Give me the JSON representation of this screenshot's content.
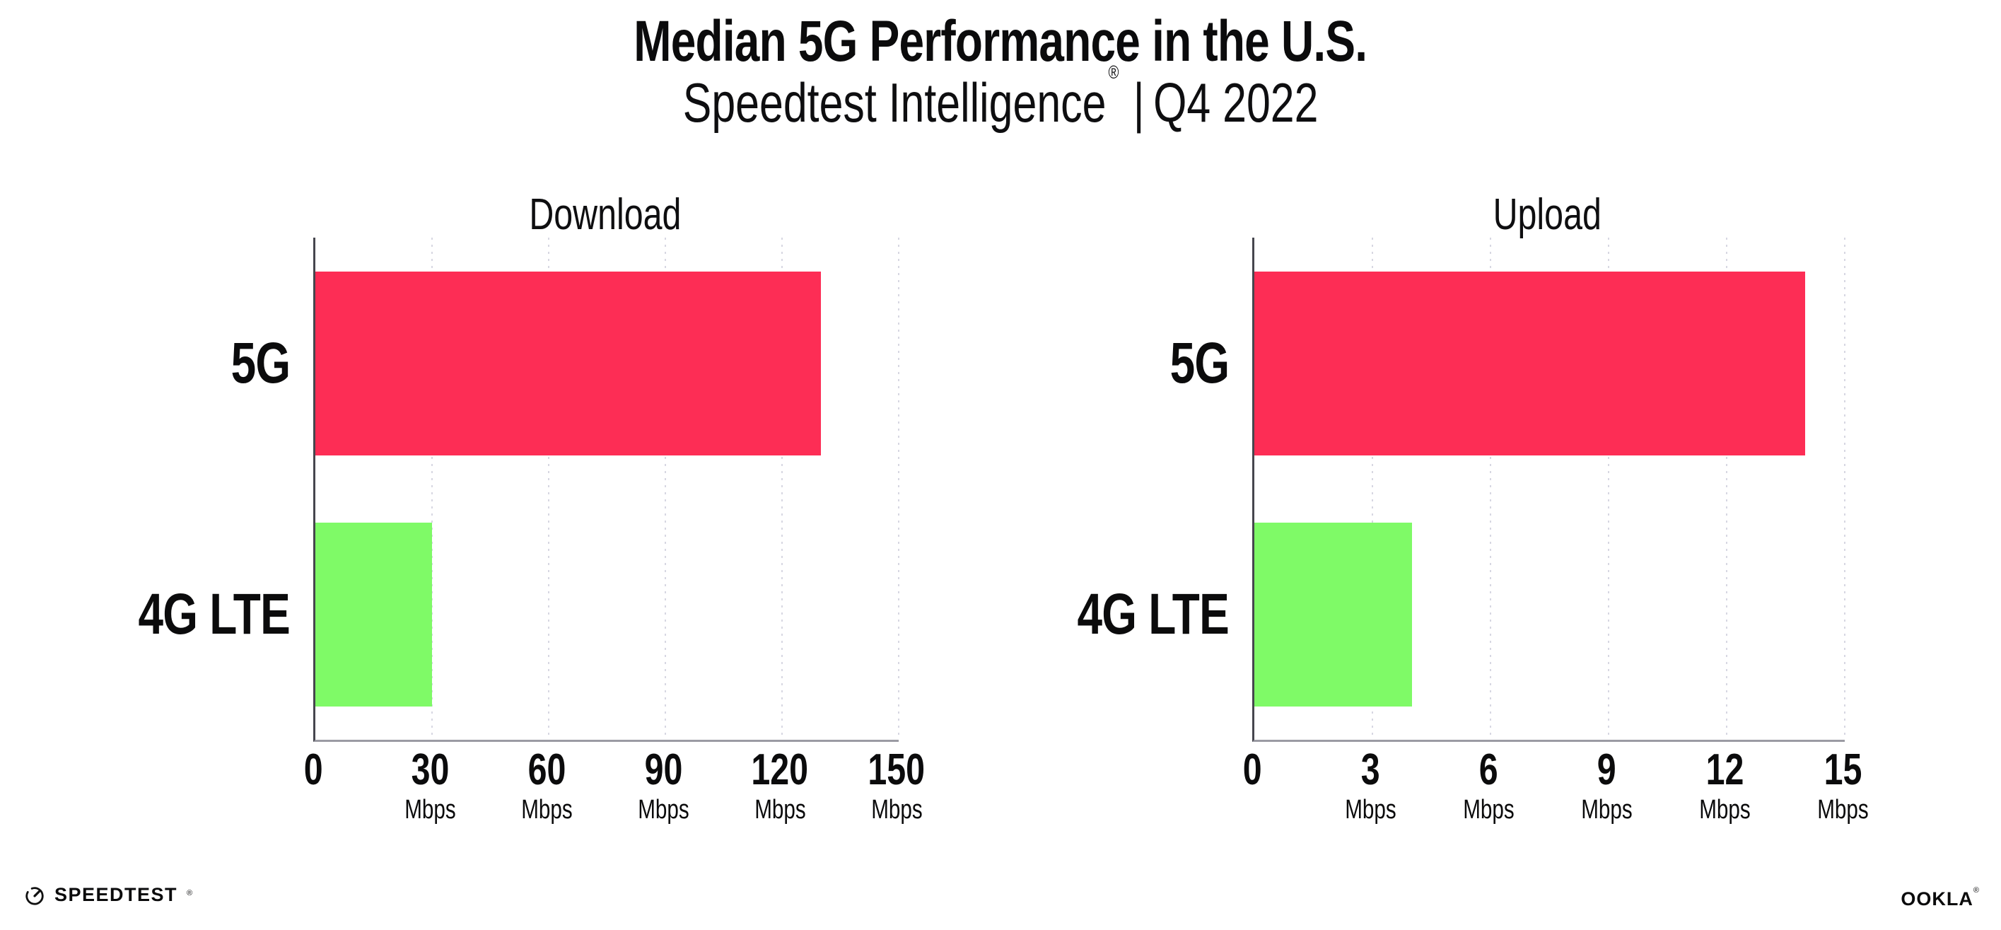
{
  "header": {
    "title": "Median 5G Performance in the U.S.",
    "subtitle_brand": "Speedtest Intelligence",
    "subtitle_reg": "®",
    "subtitle_divider": "|",
    "subtitle_quarter": "Q4 2022"
  },
  "chart_data": [
    {
      "type": "bar",
      "orientation": "horizontal",
      "title": "Download",
      "categories": [
        "5G",
        "4G LTE"
      ],
      "values": [
        130,
        30
      ],
      "unit": "Mbps",
      "xlabel": "",
      "ylabel": "",
      "xlim": [
        0,
        150
      ],
      "ticks": [
        0,
        30,
        60,
        90,
        120,
        150
      ],
      "series_colors": {
        "5G": "#FD2D55",
        "4G LTE": "#7FFA67"
      },
      "grid": "vertical-dotted",
      "legend": "none"
    },
    {
      "type": "bar",
      "orientation": "horizontal",
      "title": "Upload",
      "categories": [
        "5G",
        "4G LTE"
      ],
      "values": [
        14,
        4
      ],
      "unit": "Mbps",
      "xlabel": "",
      "ylabel": "",
      "xlim": [
        0,
        15
      ],
      "ticks": [
        0,
        3,
        6,
        9,
        12,
        15
      ],
      "series_colors": {
        "5G": "#FD2D55",
        "4G LTE": "#7FFA67"
      },
      "grid": "vertical-dotted",
      "legend": "none"
    }
  ],
  "footer": {
    "speedtest_wordmark": "SPEEDTEST",
    "speedtest_mark": "®",
    "speedtest_icon": "speedtest-gauge-icon",
    "ookla_wordmark": "OOKLA",
    "ookla_mark": "®"
  },
  "colors": {
    "bar_5g": "#FD2D55",
    "bar_4g_lte": "#7FFA67",
    "axis_y": "#46464E",
    "axis_x": "#9B9BA3",
    "gridline": "#D7D7E2",
    "text": "#0B0B0C",
    "background": "#FFFFFF"
  }
}
